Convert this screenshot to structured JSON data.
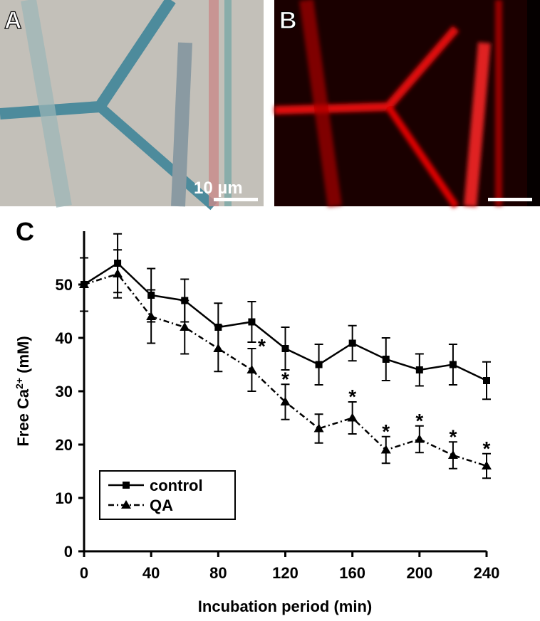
{
  "panels": [
    {
      "label": "A",
      "scale_label": "10 µm"
    },
    {
      "label": "B"
    },
    {
      "label": "C"
    }
  ],
  "chart_data": {
    "type": "line",
    "xlabel": "Incubation period (min)",
    "ylabel_parts": [
      "Free Ca",
      "2+",
      " (mM)"
    ],
    "x": [
      0,
      20,
      40,
      60,
      80,
      100,
      120,
      140,
      160,
      180,
      200,
      220,
      240
    ],
    "series": [
      {
        "name": "control",
        "color": "#000000",
        "marker": "square",
        "dash": "solid",
        "values": [
          50,
          54,
          48,
          47,
          42,
          43,
          38,
          35,
          39,
          36,
          34,
          35,
          32
        ],
        "errors": [
          5,
          5.5,
          5,
          4,
          4.5,
          3.8,
          4,
          3.8,
          3.3,
          4,
          3,
          3.8,
          3.5
        ]
      },
      {
        "name": "QA",
        "color": "#000000",
        "marker": "triangle",
        "dash": "dashdot",
        "values": [
          50,
          52,
          44,
          42,
          38,
          34,
          28,
          23,
          25,
          19,
          21,
          18,
          16
        ],
        "errors": [
          5,
          4.5,
          5,
          5,
          4.3,
          4,
          3.3,
          2.7,
          3,
          2.5,
          2.5,
          2.5,
          2.3
        ]
      }
    ],
    "annotations": [
      {
        "x": 100,
        "text": "*"
      },
      {
        "x": 120,
        "text": "*"
      },
      {
        "x": 160,
        "text": "*"
      },
      {
        "x": 180,
        "text": "*"
      },
      {
        "x": 200,
        "text": "*"
      },
      {
        "x": 220,
        "text": "*"
      },
      {
        "x": 240,
        "text": "*"
      }
    ],
    "xlim": [
      0,
      240
    ],
    "xticks": [
      0,
      40,
      80,
      120,
      160,
      200,
      240
    ],
    "ylim": [
      0,
      60
    ],
    "yticks": [
      0,
      10,
      20,
      30,
      40,
      50
    ],
    "legend": "lower left"
  }
}
